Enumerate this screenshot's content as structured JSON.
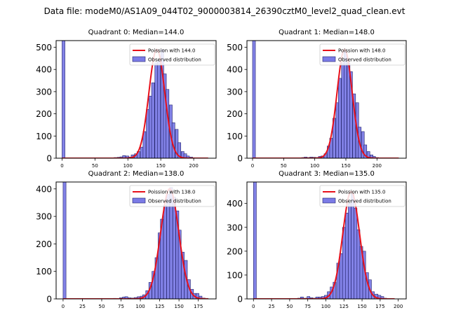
{
  "figure": {
    "suptitle": "Data file: modeM0/AS1A09_044T02_9000003814_26390cztM0_level2_quad_clean.evt"
  },
  "colors": {
    "bar_fill": "#7b7be6",
    "bar_edge": "#23236b",
    "curve": "#e8101a",
    "axis": "#000000"
  },
  "chart_data": [
    {
      "type": "bar",
      "title": "Quadrant 0: Median=144.0",
      "xlim": [
        -9,
        234
      ],
      "ylim": [
        0,
        530
      ],
      "xticks": [
        0,
        50,
        100,
        150,
        200
      ],
      "yticks": [
        0,
        100,
        200,
        300,
        400,
        500
      ],
      "bin_width": 4.4,
      "bins": [
        [
          0,
          530
        ],
        [
          79,
          3
        ],
        [
          84,
          4
        ],
        [
          88,
          6
        ],
        [
          92,
          12
        ],
        [
          97,
          10
        ],
        [
          101,
          5
        ],
        [
          105,
          15
        ],
        [
          110,
          20
        ],
        [
          114,
          30
        ],
        [
          119,
          50
        ],
        [
          123,
          120
        ],
        [
          128,
          220
        ],
        [
          132,
          280
        ],
        [
          136,
          340
        ],
        [
          141,
          430
        ],
        [
          145,
          440
        ],
        [
          150,
          490
        ],
        [
          154,
          380
        ],
        [
          158,
          310
        ],
        [
          163,
          240
        ],
        [
          167,
          160
        ],
        [
          172,
          130
        ],
        [
          176,
          70
        ],
        [
          181,
          30
        ],
        [
          185,
          20
        ],
        [
          189,
          10
        ],
        [
          194,
          5
        ],
        [
          198,
          2
        ]
      ],
      "curve_mu": 144.0,
      "curve_peak": 490,
      "curve_xmax": 222,
      "legend": {
        "curve_label": "Poission with 144.0",
        "bars_label": "Observed distribution",
        "position": "upper right"
      }
    },
    {
      "type": "bar",
      "title": "Quadrant 1: Median=148.0",
      "xlim": [
        -9,
        247
      ],
      "ylim": [
        0,
        530
      ],
      "xticks": [
        0,
        50,
        100,
        150,
        200
      ],
      "yticks": [
        0,
        100,
        200,
        300,
        400,
        500
      ],
      "bin_width": 4.6,
      "bins": [
        [
          0,
          530
        ],
        [
          79,
          3
        ],
        [
          83,
          5
        ],
        [
          88,
          3
        ],
        [
          92,
          5
        ],
        [
          97,
          4
        ],
        [
          101,
          3
        ],
        [
          106,
          8
        ],
        [
          110,
          10
        ],
        [
          115,
          20
        ],
        [
          120,
          55
        ],
        [
          124,
          90
        ],
        [
          129,
          180
        ],
        [
          134,
          250
        ],
        [
          138,
          360
        ],
        [
          143,
          430
        ],
        [
          147,
          480
        ],
        [
          152,
          430
        ],
        [
          156,
          390
        ],
        [
          161,
          290
        ],
        [
          166,
          250
        ],
        [
          170,
          140
        ],
        [
          175,
          120
        ],
        [
          179,
          60
        ],
        [
          184,
          30
        ],
        [
          189,
          15
        ],
        [
          193,
          8
        ],
        [
          198,
          3
        ],
        [
          202,
          2
        ]
      ],
      "curve_mu": 148.0,
      "curve_peak": 490,
      "curve_xmax": 235,
      "legend": {
        "curve_label": "Poission with 148.0",
        "bars_label": "Observed distribution",
        "position": "upper right"
      }
    },
    {
      "type": "bar",
      "title": "Quadrant 2: Median=138.0",
      "xlim": [
        -9,
        198
      ],
      "ylim": [
        0,
        425
      ],
      "xticks": [
        0,
        25,
        50,
        75,
        100,
        125,
        150,
        175
      ],
      "yticks": [
        0,
        100,
        200,
        300,
        400
      ],
      "bin_width": 3.8,
      "bins": [
        [
          0,
          425
        ],
        [
          65,
          2
        ],
        [
          73,
          4
        ],
        [
          77,
          7
        ],
        [
          80,
          8
        ],
        [
          84,
          4
        ],
        [
          88,
          3
        ],
        [
          92,
          5
        ],
        [
          96,
          8
        ],
        [
          100,
          10
        ],
        [
          103,
          15
        ],
        [
          107,
          30
        ],
        [
          111,
          60
        ],
        [
          115,
          100
        ],
        [
          119,
          150
        ],
        [
          123,
          240
        ],
        [
          126,
          290
        ],
        [
          130,
          340
        ],
        [
          134,
          380
        ],
        [
          138,
          405
        ],
        [
          142,
          370
        ],
        [
          146,
          320
        ],
        [
          149,
          250
        ],
        [
          153,
          170
        ],
        [
          157,
          140
        ],
        [
          161,
          70
        ],
        [
          165,
          35
        ],
        [
          168,
          20
        ],
        [
          172,
          20
        ],
        [
          176,
          10
        ],
        [
          180,
          3
        ],
        [
          184,
          2
        ]
      ],
      "curve_mu": 138.0,
      "curve_peak": 400,
      "curve_xmax": 188,
      "legend": {
        "curve_label": "Poission with 138.0",
        "bars_label": "Observed distribution",
        "position": "upper right"
      }
    },
    {
      "type": "bar",
      "title": "Quadrant 3: Median=135.0",
      "xlim": [
        -9,
        211
      ],
      "ylim": [
        0,
        490
      ],
      "xticks": [
        0,
        25,
        50,
        75,
        100,
        125,
        150,
        175,
        200
      ],
      "yticks": [
        0,
        100,
        200,
        300,
        400
      ],
      "bin_width": 4.0,
      "bins": [
        [
          0,
          490
        ],
        [
          61,
          3
        ],
        [
          65,
          8
        ],
        [
          70,
          3
        ],
        [
          74,
          10
        ],
        [
          78,
          5
        ],
        [
          82,
          3
        ],
        [
          86,
          8
        ],
        [
          90,
          8
        ],
        [
          94,
          10
        ],
        [
          98,
          15
        ],
        [
          102,
          30
        ],
        [
          106,
          50
        ],
        [
          110,
          70
        ],
        [
          115,
          150
        ],
        [
          119,
          190
        ],
        [
          123,
          300
        ],
        [
          127,
          360
        ],
        [
          131,
          400
        ],
        [
          135,
          440
        ],
        [
          139,
          380
        ],
        [
          143,
          290
        ],
        [
          147,
          220
        ],
        [
          151,
          200
        ],
        [
          155,
          110
        ],
        [
          159,
          80
        ],
        [
          163,
          30
        ],
        [
          168,
          20
        ],
        [
          172,
          15
        ],
        [
          176,
          10
        ],
        [
          180,
          3
        ],
        [
          184,
          2
        ]
      ],
      "curve_mu": 135.0,
      "curve_peak": 450,
      "curve_xmax": 195,
      "legend": {
        "curve_label": "Poission with 135.0",
        "bars_label": "Observed distribution",
        "position": "upper right"
      }
    }
  ]
}
